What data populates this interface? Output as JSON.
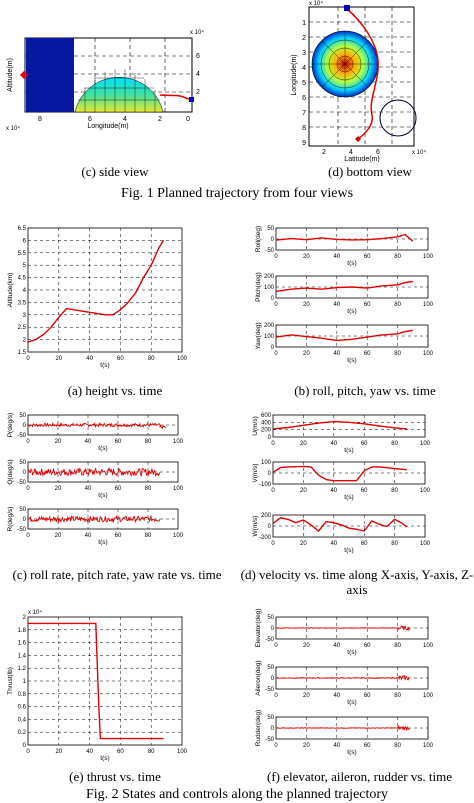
{
  "fig1": {
    "caption_c": "(c) side view",
    "caption_d": "(d) bottom view",
    "title": "Fig. 1 Planned trajectory from four views",
    "side": {
      "xlabel": "Longitude(m)",
      "ylabel": "Altitude(m)",
      "xticks": [
        "8",
        "6",
        "4",
        "2",
        "0"
      ],
      "xexp": "x 10⁴",
      "yticks": [
        "6",
        "4",
        "2"
      ],
      "yexp": "x 10⁴"
    },
    "bottom": {
      "xlabel": "Latitude(m)",
      "ylabel": "Longitude(m)",
      "xticks": [
        "2",
        "4",
        "6"
      ],
      "xexp": "x 10⁴",
      "yticks": [
        "1",
        "2",
        "3",
        "4",
        "5",
        "6",
        "7",
        "8",
        "9"
      ],
      "yexp": "x 10⁴"
    }
  },
  "fig2": {
    "caption_a": "(a) height vs. time",
    "caption_b": "(b) roll, pitch, yaw vs. time",
    "caption_c": "(c) roll rate, pitch rate, yaw rate vs. time",
    "caption_d": "(d) velocity vs. time along X-axis, Y-axis, Z-axis",
    "caption_e": "(e) thrust vs. time",
    "caption_f": "(f) elevator, aileron, rudder vs. time",
    "title": "Fig. 2 States and controls along the planned trajectory"
  },
  "chart_data": [
    {
      "type": "line",
      "id": "height",
      "xlabel": "t(s)",
      "ylabel": "Altitude(km)",
      "xlim": [
        0,
        100
      ],
      "ylim": [
        1.5,
        6.5
      ],
      "grid": true,
      "xticks": [
        "0",
        "20",
        "40",
        "60",
        "80",
        "100"
      ],
      "yticks": [
        "1.5",
        "2",
        "2.5",
        "3",
        "3.5",
        "4",
        "4.5",
        "5",
        "5.5",
        "6",
        "6.5"
      ],
      "series": [
        {
          "x": [
            0,
            5,
            10,
            15,
            20,
            25,
            30,
            35,
            40,
            45,
            50,
            55,
            60,
            65,
            70,
            75,
            80,
            85,
            88
          ],
          "y": [
            1.9,
            2.0,
            2.2,
            2.5,
            2.9,
            3.25,
            3.2,
            3.15,
            3.1,
            3.05,
            3.0,
            3.0,
            3.2,
            3.5,
            3.9,
            4.5,
            5.0,
            5.7,
            6.0
          ]
        }
      ]
    },
    {
      "type": "line",
      "id": "roll",
      "xlabel": "t(s)",
      "ylabel": "Roll(deg)",
      "xlim": [
        0,
        100
      ],
      "ylim": [
        -50,
        50
      ],
      "grid": true,
      "xticks": [
        "0",
        "20",
        "40",
        "60",
        "80",
        "100"
      ],
      "yticks": [
        "-50",
        "0",
        "50"
      ],
      "series": [
        {
          "x": [
            0,
            10,
            20,
            30,
            40,
            50,
            60,
            70,
            80,
            85,
            90
          ],
          "y": [
            -5,
            2,
            -3,
            5,
            -2,
            -4,
            -3,
            2,
            10,
            20,
            -10
          ]
        }
      ]
    },
    {
      "type": "line",
      "id": "pitch",
      "xlabel": "t(s)",
      "ylabel": "Pitch(deg)",
      "xlim": [
        0,
        100
      ],
      "ylim": [
        0,
        200
      ],
      "grid": true,
      "xticks": [
        "0",
        "20",
        "40",
        "60",
        "80",
        "100"
      ],
      "yticks": [
        "0",
        "100",
        "200"
      ],
      "series": [
        {
          "x": [
            0,
            10,
            20,
            30,
            40,
            50,
            60,
            70,
            80,
            85,
            90
          ],
          "y": [
            60,
            80,
            90,
            80,
            95,
            100,
            90,
            110,
            120,
            140,
            150
          ]
        }
      ]
    },
    {
      "type": "line",
      "id": "yaw",
      "xlabel": "t(s)",
      "ylabel": "Yaw(deg)",
      "xlim": [
        0,
        100
      ],
      "ylim": [
        0,
        200
      ],
      "grid": true,
      "xticks": [
        "0",
        "20",
        "40",
        "60",
        "80",
        "100"
      ],
      "yticks": [
        "0",
        "100",
        "200"
      ],
      "series": [
        {
          "x": [
            0,
            10,
            20,
            30,
            40,
            50,
            60,
            70,
            80,
            85,
            90
          ],
          "y": [
            90,
            110,
            95,
            80,
            60,
            70,
            90,
            110,
            120,
            140,
            150
          ]
        }
      ]
    },
    {
      "type": "line",
      "id": "prate",
      "xlabel": "t(s)",
      "ylabel": "P(deg/s)",
      "xlim": [
        0,
        100
      ],
      "ylim": [
        -50,
        50
      ],
      "grid": true,
      "xticks": [
        "0",
        "20",
        "40",
        "60",
        "80",
        "100"
      ],
      "yticks": [
        "-50",
        "0",
        "50"
      ],
      "series": [
        {
          "x": [
            0,
            80,
            85,
            88,
            88,
            92
          ],
          "y": [
            0,
            0,
            0,
            0,
            -10,
            -10
          ]
        }
      ]
    },
    {
      "type": "line",
      "id": "qrate",
      "xlabel": "t(s)",
      "ylabel": "Q(deg/s)",
      "xlim": [
        0,
        100
      ],
      "ylim": [
        -50,
        50
      ],
      "grid": true,
      "xticks": [
        "0",
        "20",
        "40",
        "60",
        "80",
        "100"
      ],
      "yticks": [
        "-50",
        "0",
        "50"
      ],
      "series": [
        {
          "x": [
            0,
            88
          ],
          "y": [
            0,
            0
          ]
        }
      ]
    },
    {
      "type": "line",
      "id": "rrate",
      "xlabel": "t(s)",
      "ylabel": "R(deg/s)",
      "xlim": [
        0,
        100
      ],
      "ylim": [
        -50,
        50
      ],
      "grid": true,
      "xticks": [
        "0",
        "20",
        "40",
        "60",
        "80",
        "100"
      ],
      "yticks": [
        "-50",
        "0",
        "50"
      ],
      "series": [
        {
          "x": [
            0,
            88
          ],
          "y": [
            0,
            0
          ]
        }
      ]
    },
    {
      "type": "line",
      "id": "u",
      "xlabel": "t(s)",
      "ylabel": "U(m/s)",
      "xlim": [
        0,
        100
      ],
      "ylim": [
        0,
        600
      ],
      "grid": true,
      "xticks": [
        "0",
        "20",
        "40",
        "60",
        "80",
        "100"
      ],
      "yticks": [
        "0",
        "200",
        "400",
        "600"
      ],
      "series": [
        {
          "x": [
            0,
            10,
            20,
            30,
            40,
            50,
            60,
            70,
            80,
            88
          ],
          "y": [
            220,
            260,
            320,
            380,
            420,
            400,
            360,
            300,
            250,
            220
          ]
        }
      ]
    },
    {
      "type": "line",
      "id": "v",
      "xlabel": "t(s)",
      "ylabel": "V(m/s)",
      "xlim": [
        0,
        100
      ],
      "ylim": [
        -100,
        100
      ],
      "grid": true,
      "xticks": [
        "0",
        "20",
        "40",
        "60",
        "80",
        "100"
      ],
      "yticks": [
        "-100",
        "0",
        "100"
      ],
      "series": [
        {
          "x": [
            0,
            5,
            10,
            20,
            25,
            30,
            35,
            40,
            50,
            55,
            60,
            65,
            70,
            80,
            88
          ],
          "y": [
            5,
            50,
            55,
            60,
            55,
            -20,
            -60,
            -70,
            -70,
            -70,
            20,
            55,
            55,
            40,
            30
          ]
        }
      ]
    },
    {
      "type": "line",
      "id": "w",
      "xlabel": "t(s)",
      "ylabel": "W(m/s)",
      "xlim": [
        0,
        100
      ],
      "ylim": [
        -200,
        200
      ],
      "grid": true,
      "xticks": [
        "0",
        "20",
        "40",
        "60",
        "80",
        "100"
      ],
      "yticks": [
        "-200",
        "0",
        "200"
      ],
      "series": [
        {
          "x": [
            0,
            5,
            10,
            15,
            20,
            25,
            30,
            35,
            40,
            45,
            50,
            55,
            60,
            65,
            70,
            75,
            80,
            85,
            88
          ],
          "y": [
            50,
            150,
            120,
            60,
            110,
            20,
            -90,
            80,
            60,
            20,
            -40,
            -60,
            -90,
            90,
            30,
            -10,
            120,
            50,
            -20
          ]
        }
      ]
    },
    {
      "type": "line",
      "id": "thrust",
      "xlabel": "t(s)",
      "ylabel": "Thrust(lb)",
      "xlim": [
        0,
        100
      ],
      "ylim": [
        0,
        2
      ],
      "grid": true,
      "xticks": [
        "0",
        "20",
        "40",
        "60",
        "80",
        "100"
      ],
      "yticks": [
        "0",
        "0.2",
        "0.4",
        "0.6",
        "0.8",
        "1",
        "1.2",
        "1.4",
        "1.6",
        "1.8",
        "2"
      ],
      "yexp": "x 10⁴",
      "series": [
        {
          "x": [
            0,
            44,
            46,
            47,
            48,
            88
          ],
          "y": [
            1.9,
            1.9,
            0.6,
            0.1,
            0.1,
            0.1
          ]
        }
      ]
    },
    {
      "type": "line",
      "id": "elevator",
      "xlabel": "t(s)",
      "ylabel": "Elevator(deg)",
      "xlim": [
        0,
        100
      ],
      "ylim": [
        -50,
        50
      ],
      "grid": true,
      "xticks": [
        "0",
        "20",
        "40",
        "60",
        "80",
        "100"
      ],
      "yticks": [
        "-50",
        "0",
        "50"
      ],
      "series": [
        {
          "x": [
            0,
            88
          ],
          "y": [
            0,
            0
          ]
        }
      ]
    },
    {
      "type": "line",
      "id": "aileron",
      "xlabel": "t(s)",
      "ylabel": "Aileron(deg)",
      "xlim": [
        0,
        100
      ],
      "ylim": [
        -50,
        50
      ],
      "grid": true,
      "xticks": [
        "0",
        "20",
        "40",
        "60",
        "80",
        "100"
      ],
      "yticks": [
        "-50",
        "0",
        "50"
      ],
      "series": [
        {
          "x": [
            0,
            88
          ],
          "y": [
            0,
            0
          ]
        }
      ]
    },
    {
      "type": "line",
      "id": "rudder",
      "xlabel": "t(s)",
      "ylabel": "Rudder(deg)",
      "xlim": [
        0,
        100
      ],
      "ylim": [
        -50,
        50
      ],
      "grid": true,
      "xticks": [
        "0",
        "20",
        "40",
        "60",
        "80",
        "100"
      ],
      "yticks": [
        "-50",
        "0",
        "50"
      ],
      "series": [
        {
          "x": [
            0,
            88
          ],
          "y": [
            0,
            0
          ]
        }
      ]
    }
  ]
}
